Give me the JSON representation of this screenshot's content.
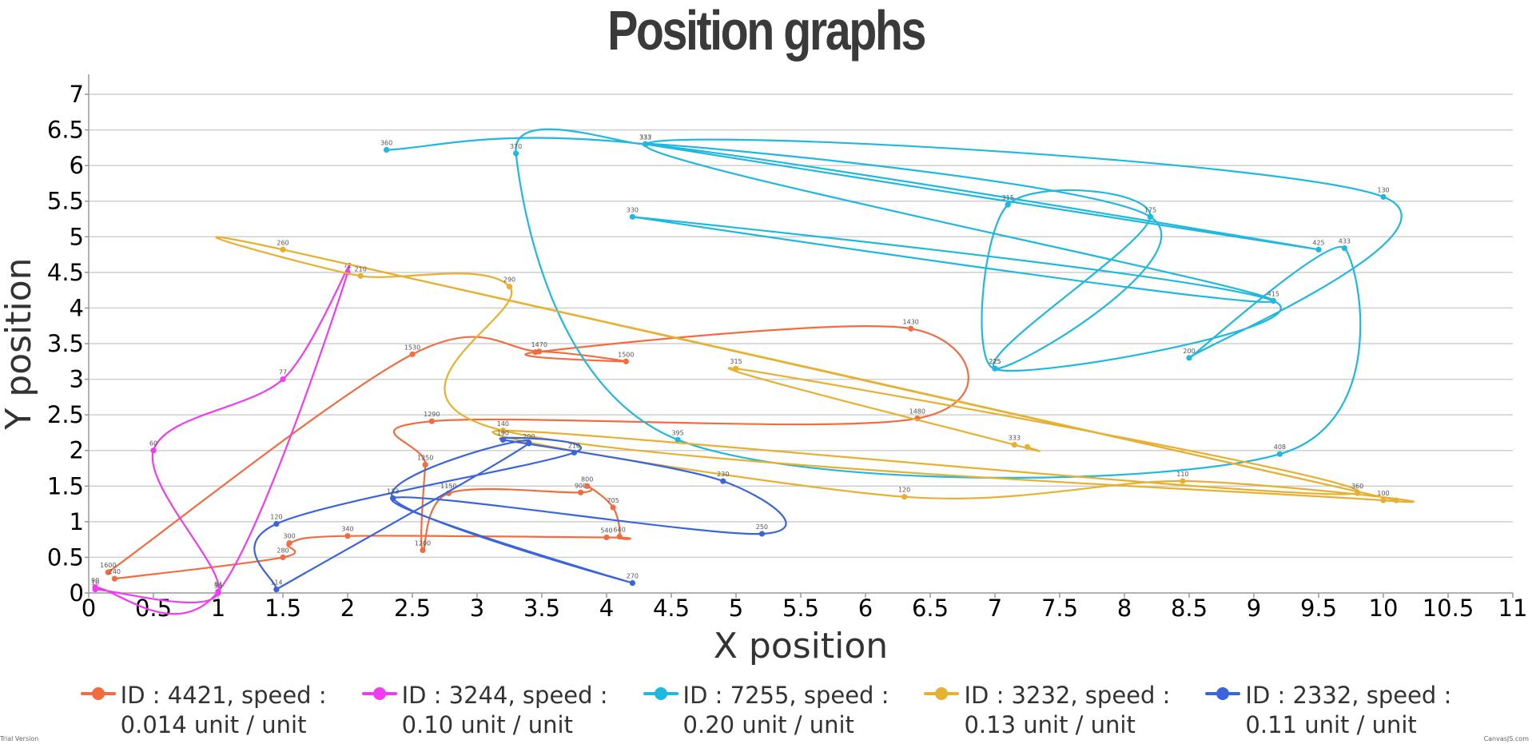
{
  "chart_data": {
    "type": "line",
    "title": "Position graphs",
    "xlabel": "X position",
    "ylabel": "Y position",
    "xlim": [
      0,
      11
    ],
    "ylim": [
      0,
      7
    ],
    "x_ticks": [
      "0",
      "0.5",
      "1",
      "1.5",
      "2",
      "2.5",
      "3",
      "3.5",
      "4",
      "4.5",
      "5",
      "5.5",
      "6",
      "6.5",
      "7",
      "7.5",
      "8",
      "8.5",
      "9",
      "9.5",
      "10",
      "10.5",
      "11"
    ],
    "y_ticks": [
      "0",
      "0.5",
      "1",
      "1.5",
      "2",
      "2.5",
      "3",
      "3.5",
      "4",
      "4.5",
      "5",
      "5.5",
      "6",
      "6.5",
      "7"
    ],
    "grid": "horizontal",
    "legend_position": "bottom",
    "series": [
      {
        "name": "ID : 4421, speed : 0.014 unit / unit",
        "legend_lines": [
          "ID : 4421, speed :",
          "0.014 unit / unit"
        ],
        "color": "#F26C40",
        "points": [
          {
            "x": 0.15,
            "y": 0.29,
            "label": "1600"
          },
          {
            "x": 2.5,
            "y": 3.35,
            "label": "1530"
          },
          {
            "x": 3.48,
            "y": 3.39,
            "label": "1470"
          },
          {
            "x": 4.15,
            "y": 3.25,
            "label": "1500"
          },
          {
            "x": 3.45,
            "y": 3.38,
            "label": ""
          },
          {
            "x": 6.35,
            "y": 3.71,
            "label": "1430"
          },
          {
            "x": 6.4,
            "y": 2.45,
            "label": "1480"
          },
          {
            "x": 2.65,
            "y": 2.41,
            "label": "1290"
          },
          {
            "x": 2.6,
            "y": 1.8,
            "label": "1250"
          },
          {
            "x": 2.58,
            "y": 0.6,
            "label": "1200"
          },
          {
            "x": 2.78,
            "y": 1.4,
            "label": "1150"
          },
          {
            "x": 3.8,
            "y": 1.41,
            "label": "900"
          },
          {
            "x": 3.85,
            "y": 1.5,
            "label": "800"
          },
          {
            "x": 4.05,
            "y": 1.2,
            "label": "705"
          },
          {
            "x": 4.1,
            "y": 0.79,
            "label": "640"
          },
          {
            "x": 4.0,
            "y": 0.78,
            "label": "540"
          },
          {
            "x": 2.0,
            "y": 0.8,
            "label": "340"
          },
          {
            "x": 1.55,
            "y": 0.7,
            "label": "300"
          },
          {
            "x": 1.5,
            "y": 0.5,
            "label": "280"
          },
          {
            "x": 0.2,
            "y": 0.2,
            "label": "240"
          }
        ]
      },
      {
        "name": "ID : 3244, speed : 0.10 unit / unit",
        "legend_lines": [
          "ID : 3244, speed :",
          "0.10 unit / unit"
        ],
        "color": "#F03CF0",
        "points": [
          {
            "x": 0.05,
            "y": 0.05,
            "label": "10"
          },
          {
            "x": 1.0,
            "y": 0.0,
            "label": "34"
          },
          {
            "x": 0.5,
            "y": 2.0,
            "label": "60"
          },
          {
            "x": 1.5,
            "y": 3.0,
            "label": "77"
          },
          {
            "x": 2.0,
            "y": 4.5,
            "label": "72"
          },
          {
            "x": 1.0,
            "y": 0.02,
            "label": "84"
          },
          {
            "x": 0.05,
            "y": 0.08,
            "label": "90"
          }
        ]
      },
      {
        "name": "ID : 7255, speed : 0.20 unit / unit",
        "legend_lines": [
          "ID : 7255, speed :",
          "0.20 unit / unit"
        ],
        "color": "#1FB8DE",
        "points": [
          {
            "x": 2.3,
            "y": 6.22,
            "label": "360"
          },
          {
            "x": 4.3,
            "y": 6.3,
            "label": "333"
          },
          {
            "x": 9.5,
            "y": 4.82,
            "label": "425"
          },
          {
            "x": 4.3,
            "y": 6.3,
            "label": "333"
          },
          {
            "x": 8.2,
            "y": 5.28,
            "label": "175"
          },
          {
            "x": 7.0,
            "y": 3.15,
            "label": "225"
          },
          {
            "x": 7.1,
            "y": 5.45,
            "label": "315"
          },
          {
            "x": 8.2,
            "y": 5.28,
            "label": ""
          },
          {
            "x": 7.0,
            "y": 3.15,
            "label": "225"
          },
          {
            "x": 9.15,
            "y": 4.1,
            "label": "415"
          },
          {
            "x": 4.2,
            "y": 5.28,
            "label": "330"
          },
          {
            "x": 9.15,
            "y": 4.1,
            "label": ""
          },
          {
            "x": 4.3,
            "y": 6.3,
            "label": "333"
          },
          {
            "x": 10.0,
            "y": 5.56,
            "label": "130"
          },
          {
            "x": 8.5,
            "y": 3.3,
            "label": "200"
          },
          {
            "x": 9.7,
            "y": 4.84,
            "label": "433"
          },
          {
            "x": 9.2,
            "y": 1.95,
            "label": "408"
          },
          {
            "x": 4.55,
            "y": 2.15,
            "label": "395"
          },
          {
            "x": 3.3,
            "y": 6.17,
            "label": "370"
          },
          {
            "x": 4.3,
            "y": 6.3,
            "label": ""
          }
        ]
      },
      {
        "name": "ID : 3232, speed : 0.13 unit / unit",
        "legend_lines": [
          "ID : 3232, speed :",
          "0.13 unit / unit"
        ],
        "color": "#E6B030",
        "points": [
          {
            "x": 1.5,
            "y": 4.82,
            "label": "260"
          },
          {
            "x": 10.1,
            "y": 1.3,
            "label": ""
          },
          {
            "x": 1.5,
            "y": 4.82,
            "label": ""
          },
          {
            "x": 2.1,
            "y": 4.45,
            "label": "210"
          },
          {
            "x": 3.25,
            "y": 4.3,
            "label": "290"
          },
          {
            "x": 3.2,
            "y": 2.28,
            "label": "140"
          },
          {
            "x": 10.0,
            "y": 1.3,
            "label": "100"
          },
          {
            "x": 8.45,
            "y": 1.57,
            "label": "110"
          },
          {
            "x": 6.3,
            "y": 1.35,
            "label": "120"
          },
          {
            "x": 3.2,
            "y": 2.28,
            "label": ""
          },
          {
            "x": 9.8,
            "y": 1.4,
            "label": "360"
          },
          {
            "x": 5.0,
            "y": 3.15,
            "label": "315"
          },
          {
            "x": 7.15,
            "y": 2.08,
            "label": "333"
          },
          {
            "x": 7.25,
            "y": 2.05,
            "label": ""
          }
        ]
      },
      {
        "name": "ID : 2332, speed : 0.11 unit / unit",
        "legend_lines": [
          "ID : 2332, speed :",
          "0.11 unit / unit"
        ],
        "color": "#3A64DC",
        "points": [
          {
            "x": 1.45,
            "y": 0.05,
            "label": "114"
          },
          {
            "x": 1.45,
            "y": 0.97,
            "label": "120"
          },
          {
            "x": 3.75,
            "y": 1.97,
            "label": "210"
          },
          {
            "x": 3.2,
            "y": 2.15,
            "label": "190"
          },
          {
            "x": 4.9,
            "y": 1.57,
            "label": "230"
          },
          {
            "x": 5.2,
            "y": 0.83,
            "label": "250"
          },
          {
            "x": 2.35,
            "y": 1.33,
            "label": "133"
          },
          {
            "x": 4.2,
            "y": 0.14,
            "label": "270"
          },
          {
            "x": 2.35,
            "y": 1.33,
            "label": ""
          },
          {
            "x": 3.4,
            "y": 2.1,
            "label": "200"
          },
          {
            "x": 1.45,
            "y": 0.05,
            "label": ""
          }
        ]
      }
    ]
  },
  "footer": {
    "left_note": "Trial Version",
    "right_note": "CanvasJS.com"
  }
}
